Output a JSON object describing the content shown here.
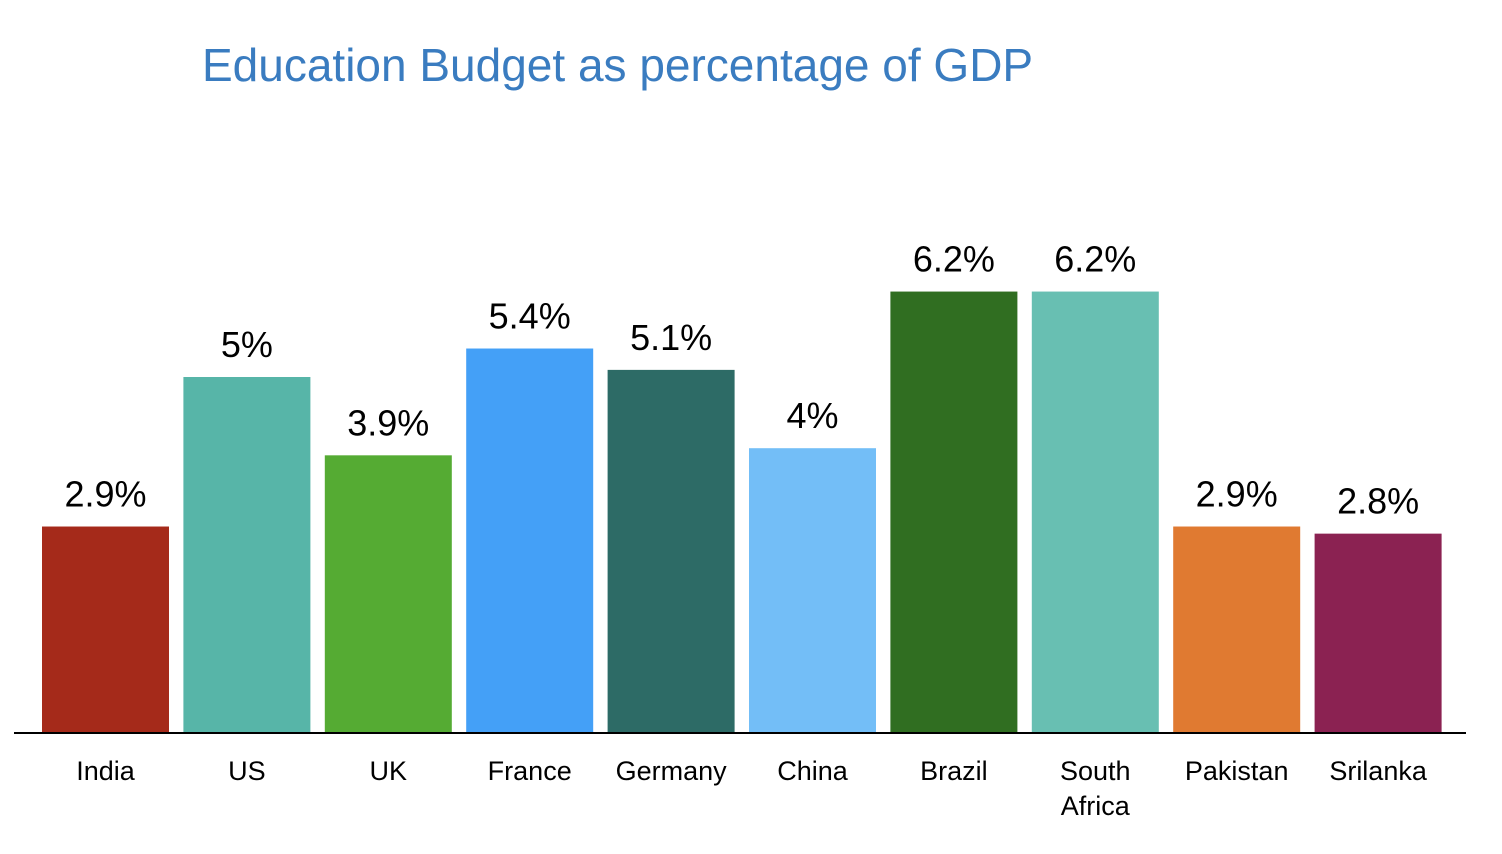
{
  "chart_data": {
    "type": "bar",
    "title": "Education Budget as percentage of GDP",
    "categories": [
      "India",
      "US",
      "UK",
      "France",
      "Germany",
      "China",
      "Brazil",
      "South Africa",
      "Pakistan",
      "Srilanka"
    ],
    "category_label_lines": [
      [
        "India"
      ],
      [
        "US"
      ],
      [
        "UK"
      ],
      [
        "France"
      ],
      [
        "Germany"
      ],
      [
        "China"
      ],
      [
        "Brazil"
      ],
      [
        "South",
        "Africa"
      ],
      [
        "Pakistan"
      ],
      [
        "Srilanka"
      ]
    ],
    "values": [
      2.9,
      5,
      3.9,
      5.4,
      5.1,
      4,
      6.2,
      6.2,
      2.9,
      2.8
    ],
    "data_labels": [
      "2.9%",
      "5%",
      "3.9%",
      "5.4%",
      "5.1%",
      "4%",
      "6.2%",
      "6.2%",
      "2.9%",
      "2.8%"
    ],
    "colors": [
      "#a52a1a",
      "#57b5a8",
      "#55ab33",
      "#44a0f7",
      "#2d6b66",
      "#73bef7",
      "#306e21",
      "#68bfb2",
      "#e07a31",
      "#8b2252"
    ],
    "ylim": [
      0,
      7.5
    ],
    "grid": false,
    "legend": "none",
    "xlabel": "",
    "ylabel": ""
  }
}
